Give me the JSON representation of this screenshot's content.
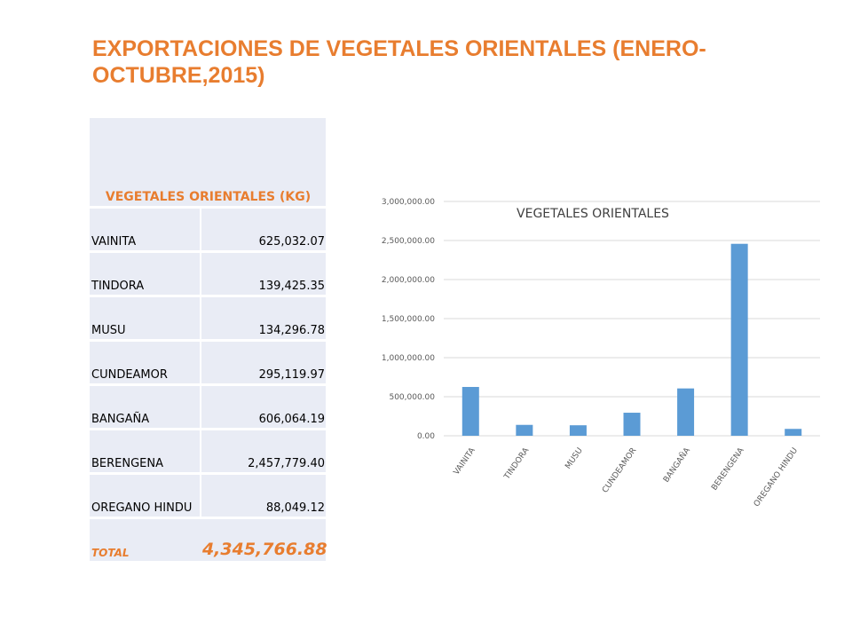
{
  "title": "EXPORTACIONES DE VEGETALES ORIENTALES (ENERO-OCTUBRE,2015)",
  "table": {
    "header": "VEGETALES  ORIENTALES (KG)",
    "rows": [
      {
        "name": "VAINITA",
        "value": "625,032.07"
      },
      {
        "name": "TINDORA",
        "value": "139,425.35"
      },
      {
        "name": "MUSU",
        "value": "134,296.78"
      },
      {
        "name": "CUNDEAMOR",
        "value": "295,119.97"
      },
      {
        "name": "BANGAÑA",
        "value": "606,064.19"
      },
      {
        "name": "BERENGENA",
        "value": "2,457,779.40"
      },
      {
        "name": "OREGANO HINDU",
        "value": "88,049.12"
      }
    ],
    "total_label": "TOTAL",
    "total_value": "4,345,766.88"
  },
  "colors": {
    "accent": "#e87d2f",
    "bar": "#5b9bd5",
    "table_bg": "#e9ecf5"
  },
  "chart_data": {
    "type": "bar",
    "title": "VEGETALES ORIENTALES",
    "categories": [
      "VAINITA",
      "TINDORA",
      "MUSU",
      "CUNDEAMOR",
      "BANGAÑA",
      "BERENGENA",
      "OREGANO HINDU"
    ],
    "values": [
      625032.07,
      139425.35,
      134296.78,
      295119.97,
      606064.19,
      2457779.4,
      88049.12
    ],
    "ylim": [
      0,
      3000000
    ],
    "yticks": [
      "0.00",
      "500,000.00",
      "1,000,000.00",
      "1,500,000.00",
      "2,000,000.00",
      "2,500,000.00",
      "3,000,000.00"
    ],
    "grid": true,
    "xlabel": "",
    "ylabel": ""
  }
}
